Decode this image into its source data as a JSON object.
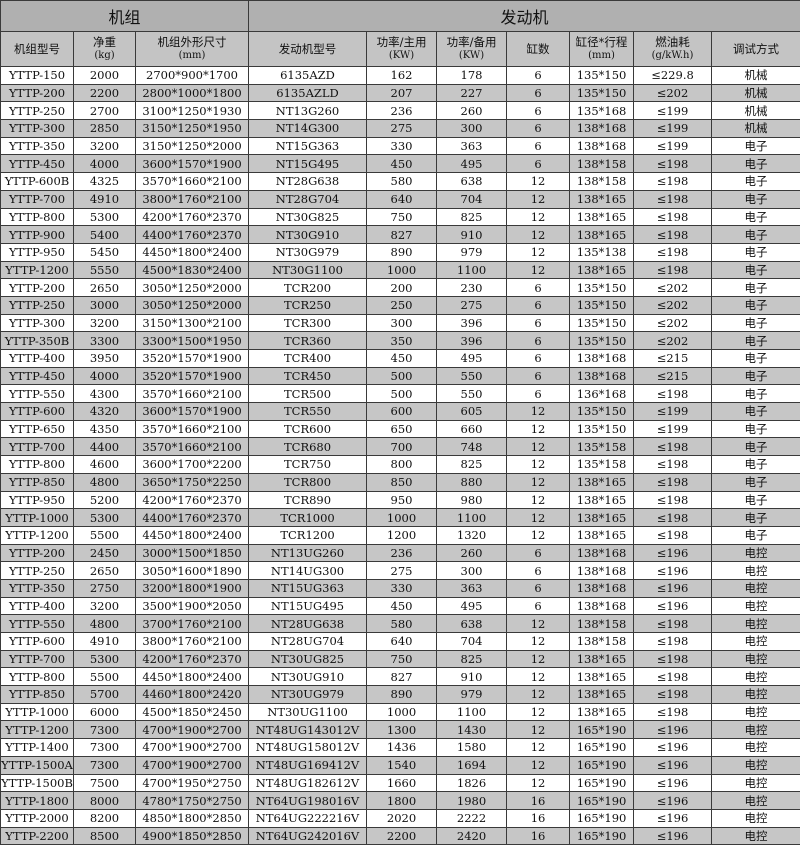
{
  "groups": {
    "unit": "机组",
    "engine": "发动机"
  },
  "headers": [
    {
      "label": "机组型号",
      "unit": ""
    },
    {
      "label": "净重",
      "unit": "(kg)"
    },
    {
      "label": "机组外形尺寸",
      "unit": "(mm)"
    },
    {
      "label": "发动机型号",
      "unit": ""
    },
    {
      "label": "功率/主用",
      "unit": "(KW)"
    },
    {
      "label": "功率/备用",
      "unit": "(KW)"
    },
    {
      "label": "缸数",
      "unit": ""
    },
    {
      "label": "缸径*行程",
      "unit": "(mm)"
    },
    {
      "label": "燃油耗",
      "unit": "(g/kW.h)"
    },
    {
      "label": "调试方式",
      "unit": ""
    }
  ],
  "rows": [
    [
      "YTTP-150",
      "2000",
      "2700*900*1700",
      "6135AZD",
      "162",
      "178",
      "6",
      "135*150",
      "≤229.8",
      "机械"
    ],
    [
      "YTTP-200",
      "2200",
      "2800*1000*1800",
      "6135AZLD",
      "207",
      "227",
      "6",
      "135*150",
      "≤202",
      "机械"
    ],
    [
      "YTTP-250",
      "2700",
      "3100*1250*1930",
      "NT13G260",
      "236",
      "260",
      "6",
      "135*168",
      "≤199",
      "机械"
    ],
    [
      "YTTP-300",
      "2850",
      "3150*1250*1950",
      "NT14G300",
      "275",
      "300",
      "6",
      "138*168",
      "≤199",
      "机械"
    ],
    [
      "YTTP-350",
      "3200",
      "3150*1250*2000",
      "NT15G363",
      "330",
      "363",
      "6",
      "138*168",
      "≤199",
      "电子"
    ],
    [
      "YTTP-450",
      "4000",
      "3600*1570*1900",
      "NT15G495",
      "450",
      "495",
      "6",
      "138*158",
      "≤198",
      "电子"
    ],
    [
      "YTTP-600B",
      "4325",
      "3570*1660*2100",
      "NT28G638",
      "580",
      "638",
      "12",
      "138*158",
      "≤198",
      "电子"
    ],
    [
      "YTTP-700",
      "4910",
      "3800*1760*2100",
      "NT28G704",
      "640",
      "704",
      "12",
      "138*165",
      "≤198",
      "电子"
    ],
    [
      "YTTP-800",
      "5300",
      "4200*1760*2370",
      "NT30G825",
      "750",
      "825",
      "12",
      "138*165",
      "≤198",
      "电子"
    ],
    [
      "YTTP-900",
      "5400",
      "4400*1760*2370",
      "NT30G910",
      "827",
      "910",
      "12",
      "138*165",
      "≤198",
      "电子"
    ],
    [
      "YTTP-950",
      "5450",
      "4450*1800*2400",
      "NT30G979",
      "890",
      "979",
      "12",
      "135*138",
      "≤198",
      "电子"
    ],
    [
      "YTTP-1200",
      "5550",
      "4500*1830*2400",
      "NT30G1100",
      "1000",
      "1100",
      "12",
      "138*165",
      "≤198",
      "电子"
    ],
    [
      "YTTP-200",
      "2650",
      "3050*1250*2000",
      "TCR200",
      "200",
      "230",
      "6",
      "135*150",
      "≤202",
      "电子"
    ],
    [
      "YTTP-250",
      "3000",
      "3050*1250*2000",
      "TCR250",
      "250",
      "275",
      "6",
      "135*150",
      "≤202",
      "电子"
    ],
    [
      "YTTP-300",
      "3200",
      "3150*1300*2100",
      "TCR300",
      "300",
      "396",
      "6",
      "135*150",
      "≤202",
      "电子"
    ],
    [
      "YTTP-350B",
      "3300",
      "3300*1500*1950",
      "TCR360",
      "350",
      "396",
      "6",
      "135*150",
      "≤202",
      "电子"
    ],
    [
      "YTTP-400",
      "3950",
      "3520*1570*1900",
      "TCR400",
      "450",
      "495",
      "6",
      "138*168",
      "≤215",
      "电子"
    ],
    [
      "YTTP-450",
      "4000",
      "3520*1570*1900",
      "TCR450",
      "500",
      "550",
      "6",
      "138*168",
      "≤215",
      "电子"
    ],
    [
      "YTTP-550",
      "4300",
      "3570*1660*2100",
      "TCR500",
      "500",
      "550",
      "6",
      "136*168",
      "≤198",
      "电子"
    ],
    [
      "YTTP-600",
      "4320",
      "3600*1570*1900",
      "TCR550",
      "600",
      "605",
      "12",
      "135*150",
      "≤199",
      "电子"
    ],
    [
      "YTTP-650",
      "4350",
      "3570*1660*2100",
      "TCR600",
      "650",
      "660",
      "12",
      "135*150",
      "≤199",
      "电子"
    ],
    [
      "YTTP-700",
      "4400",
      "3570*1660*2100",
      "TCR680",
      "700",
      "748",
      "12",
      "135*158",
      "≤198",
      "电子"
    ],
    [
      "YTTP-800",
      "4600",
      "3600*1700*2200",
      "TCR750",
      "800",
      "825",
      "12",
      "135*158",
      "≤198",
      "电子"
    ],
    [
      "YTTP-850",
      "4800",
      "3650*1750*2250",
      "TCR800",
      "850",
      "880",
      "12",
      "138*165",
      "≤198",
      "电子"
    ],
    [
      "YTTP-950",
      "5200",
      "4200*1760*2370",
      "TCR890",
      "950",
      "980",
      "12",
      "138*165",
      "≤198",
      "电子"
    ],
    [
      "YTTP-1000",
      "5300",
      "4400*1760*2370",
      "TCR1000",
      "1000",
      "1100",
      "12",
      "138*165",
      "≤198",
      "电子"
    ],
    [
      "YTTP-1200",
      "5500",
      "4450*1800*2400",
      "TCR1200",
      "1200",
      "1320",
      "12",
      "138*165",
      "≤198",
      "电子"
    ],
    [
      "YTTP-200",
      "2450",
      "3000*1500*1850",
      "NT13UG260",
      "236",
      "260",
      "6",
      "138*168",
      "≤196",
      "电控"
    ],
    [
      "YTTP-250",
      "2650",
      "3050*1600*1890",
      "NT14UG300",
      "275",
      "300",
      "6",
      "138*168",
      "≤196",
      "电控"
    ],
    [
      "YTTP-350",
      "2750",
      "3200*1800*1900",
      "NT15UG363",
      "330",
      "363",
      "6",
      "138*168",
      "≤196",
      "电控"
    ],
    [
      "YTTP-400",
      "3200",
      "3500*1900*2050",
      "NT15UG495",
      "450",
      "495",
      "6",
      "138*168",
      "≤196",
      "电控"
    ],
    [
      "YTTP-550",
      "4800",
      "3700*1760*2100",
      "NT28UG638",
      "580",
      "638",
      "12",
      "138*158",
      "≤198",
      "电控"
    ],
    [
      "YTTP-600",
      "4910",
      "3800*1760*2100",
      "NT28UG704",
      "640",
      "704",
      "12",
      "138*158",
      "≤198",
      "电控"
    ],
    [
      "YTTP-700",
      "5300",
      "4200*1760*2370",
      "NT30UG825",
      "750",
      "825",
      "12",
      "138*165",
      "≤198",
      "电控"
    ],
    [
      "YTTP-800",
      "5500",
      "4450*1800*2400",
      "NT30UG910",
      "827",
      "910",
      "12",
      "138*165",
      "≤198",
      "电控"
    ],
    [
      "YTTP-850",
      "5700",
      "4460*1800*2420",
      "NT30UG979",
      "890",
      "979",
      "12",
      "138*165",
      "≤198",
      "电控"
    ],
    [
      "YTTP-1000",
      "6000",
      "4500*1850*2450",
      "NT30UG1100",
      "1000",
      "1100",
      "12",
      "138*165",
      "≤198",
      "电控"
    ],
    [
      "YTTP-1200",
      "7300",
      "4700*1900*2700",
      "NT48UG143012V",
      "1300",
      "1430",
      "12",
      "165*190",
      "≤196",
      "电控"
    ],
    [
      "YTTP-1400",
      "7300",
      "4700*1900*2700",
      "NT48UG158012V",
      "1436",
      "1580",
      "12",
      "165*190",
      "≤196",
      "电控"
    ],
    [
      "YTTP-1500A",
      "7300",
      "4700*1900*2700",
      "NT48UG169412V",
      "1540",
      "1694",
      "12",
      "165*190",
      "≤196",
      "电控"
    ],
    [
      "YTTP-1500B",
      "7500",
      "4700*1950*2750",
      "NT48UG182612V",
      "1660",
      "1826",
      "12",
      "165*190",
      "≤196",
      "电控"
    ],
    [
      "YTTP-1800",
      "8000",
      "4780*1750*2750",
      "NT64UG198016V",
      "1800",
      "1980",
      "16",
      "165*190",
      "≤196",
      "电控"
    ],
    [
      "YTTP-2000",
      "8200",
      "4850*1800*2850",
      "NT64UG222216V",
      "2020",
      "2222",
      "16",
      "165*190",
      "≤196",
      "电控"
    ],
    [
      "YTTP-2200",
      "8500",
      "4900*1850*2850",
      "NT64UG242016V",
      "2200",
      "2420",
      "16",
      "165*190",
      "≤196",
      "电控"
    ]
  ]
}
